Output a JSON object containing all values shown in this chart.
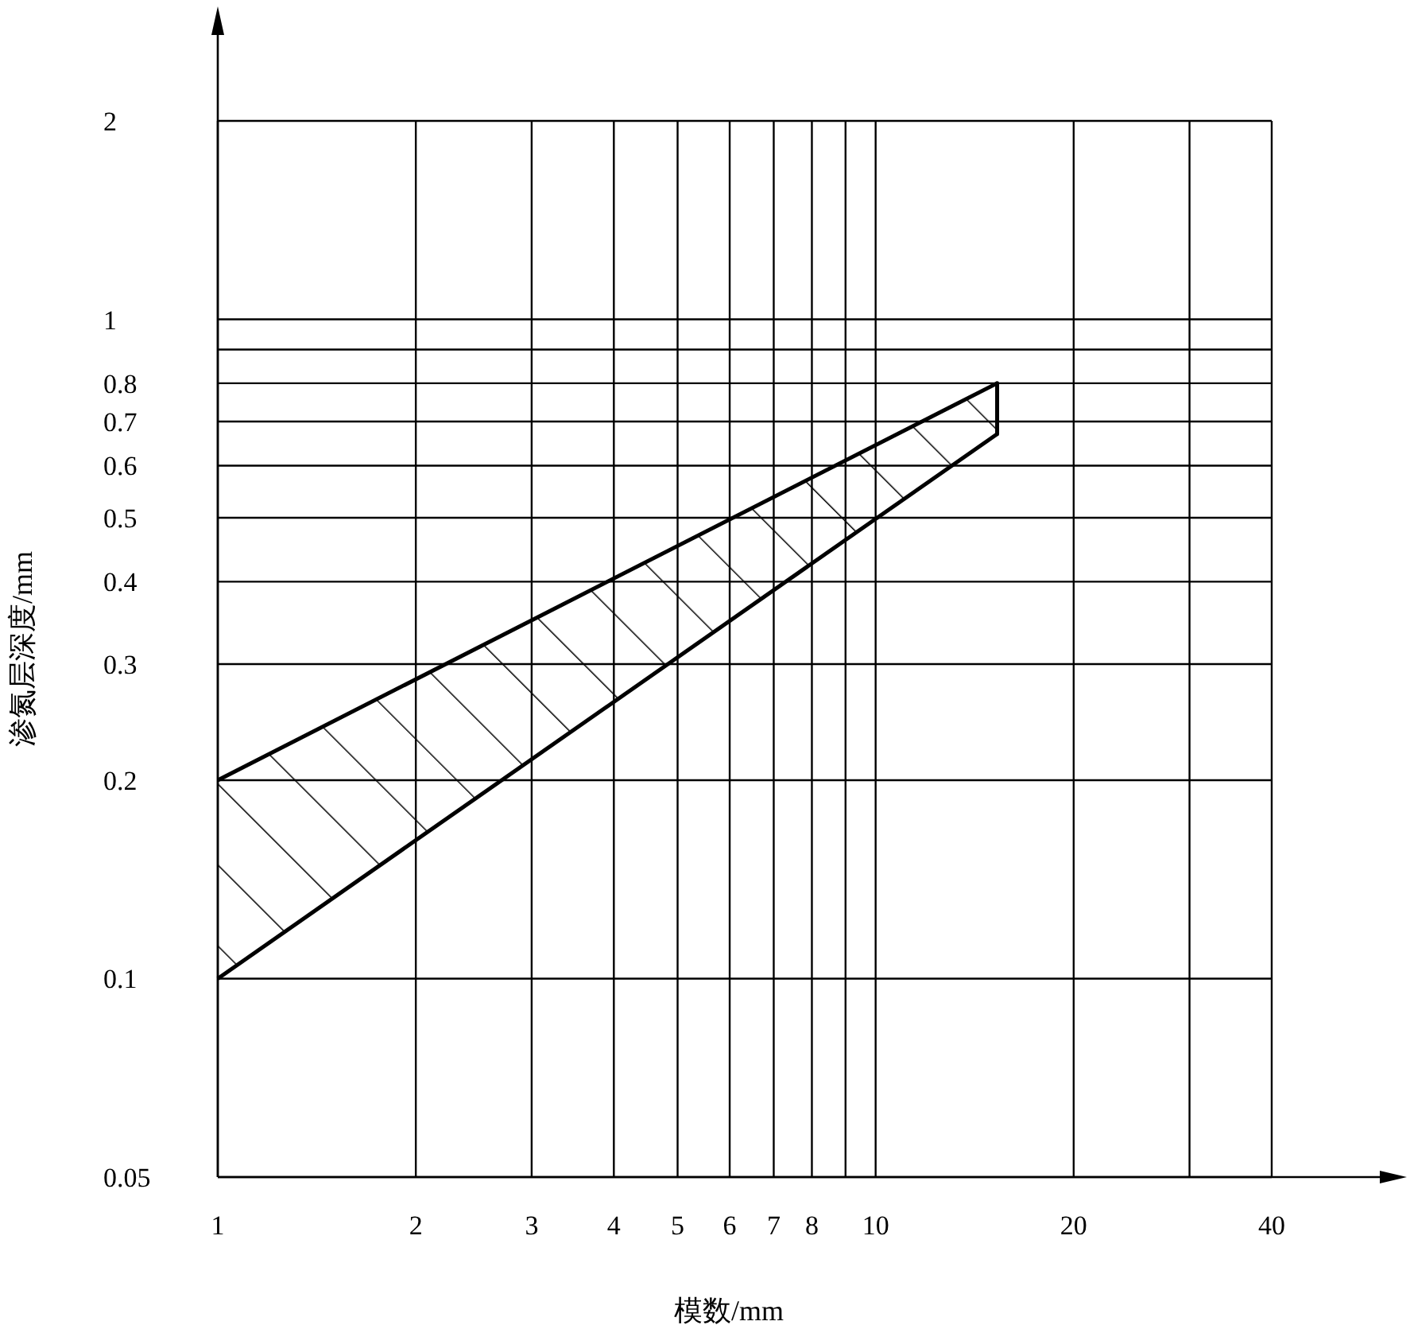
{
  "chart_data": {
    "type": "line",
    "xlabel": "模数/mm",
    "ylabel": "渗氮层深度/mm",
    "log": "xy",
    "grid": true,
    "xlim": [
      1,
      40
    ],
    "ylim": [
      0.05,
      2
    ],
    "xticks": [
      1,
      2,
      3,
      4,
      5,
      6,
      7,
      8,
      {
        "value": 9,
        "label": null
      },
      10,
      20,
      {
        "value": 30,
        "label": null
      },
      40
    ],
    "yticks": [
      0.05,
      0.1,
      0.2,
      0.3,
      0.4,
      0.5,
      0.6,
      0.7,
      0.8,
      {
        "value": 0.9,
        "label": null
      },
      1,
      2
    ],
    "x": [
      1,
      15.3
    ],
    "series": [
      {
        "color": "#000000",
        "values": [
          0.2,
          0.8
        ]
      },
      {
        "color": "#000000",
        "values": [
          0.1,
          0.67
        ]
      }
    ]
  }
}
